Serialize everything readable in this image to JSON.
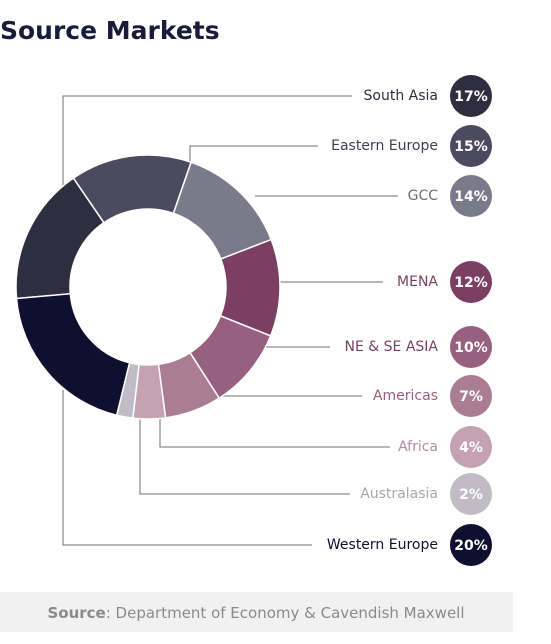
{
  "chart_data": {
    "type": "donut",
    "title": "Source Markets",
    "categories": [
      "South Asia",
      "Eastern Europe",
      "GCC",
      "MENA",
      "NE & SE ASIA",
      "Americas",
      "Africa",
      "Australasia",
      "Western Europe"
    ],
    "values": [
      17,
      15,
      14,
      12,
      10,
      7,
      4,
      2,
      20
    ],
    "value_labels": [
      "17%",
      "15%",
      "14%",
      "12%",
      "10%",
      "7%",
      "4%",
      "2%",
      "20%"
    ],
    "colors": [
      "#2f2d40",
      "#4b4a5e",
      "#7b7a8a",
      "#7b3f63",
      "#98607f",
      "#ab7d94",
      "#c4a2b2",
      "#c0bcc6",
      "#0f0f30"
    ],
    "label_colors": [
      "#2f2d40",
      "#3f3e52",
      "#6e6d7e",
      "#7b3f63",
      "#7b3f63",
      "#98607f",
      "#b48da0",
      "#a8a4b0",
      "#0f0f30"
    ],
    "source_label": "Source",
    "source_text": ": Department of Economy & Cavendish Maxwell"
  }
}
